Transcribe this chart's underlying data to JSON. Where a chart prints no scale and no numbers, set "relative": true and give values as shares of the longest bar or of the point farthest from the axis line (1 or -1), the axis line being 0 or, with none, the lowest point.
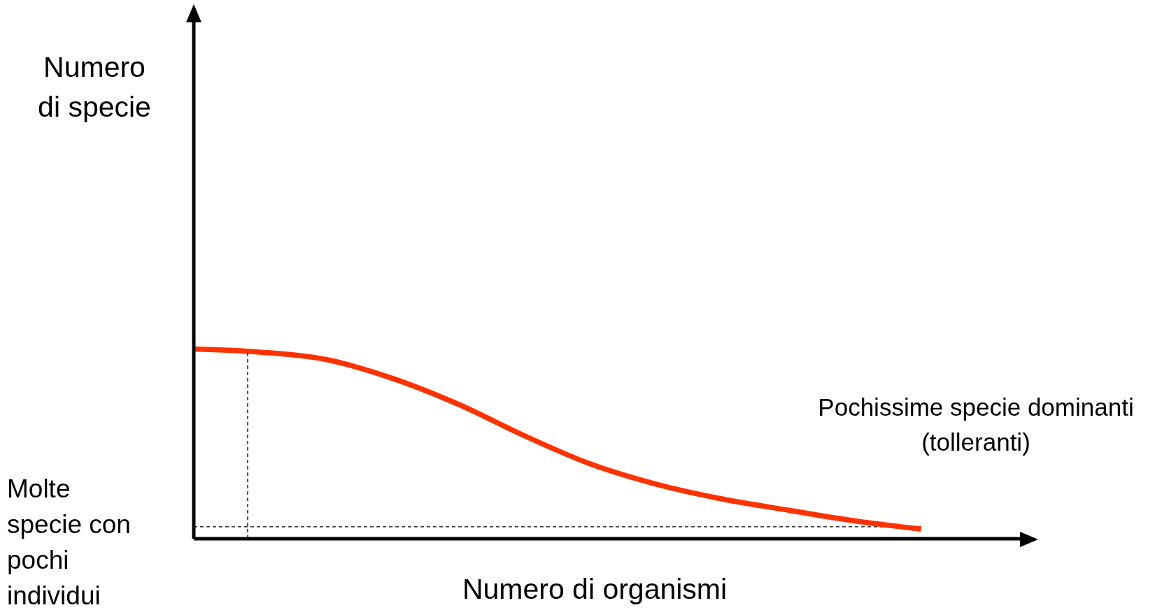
{
  "chart_data": {
    "type": "line",
    "relative": true,
    "xlabel": "Numero di organismi",
    "annotations": [
      "Molte specie con pochi individui",
      "Pochissime specie dominanti (tolleranti)",
      "Numero\ndi specie"
    ],
    "categories": [
      null,
      null,
      null,
      null,
      null,
      null,
      null,
      null,
      null,
      null,
      null,
      null
    ],
    "series": [
      {
        "color": "#ff3300",
        "values": [
          1.0,
          0.984,
          0.945,
          0.846,
          0.709,
          0.543,
          0.394,
          0.287,
          0.209,
          0.15,
          0.094,
          0.051
        ]
      }
    ],
    "ref_lines": [
      {
        "axis": "y",
        "value": 0.063,
        "color": "#000000",
        "line_style": "dashed"
      }
    ],
    "marker": "none",
    "line_style": "solid",
    "grid": false,
    "legend": false
  }
}
